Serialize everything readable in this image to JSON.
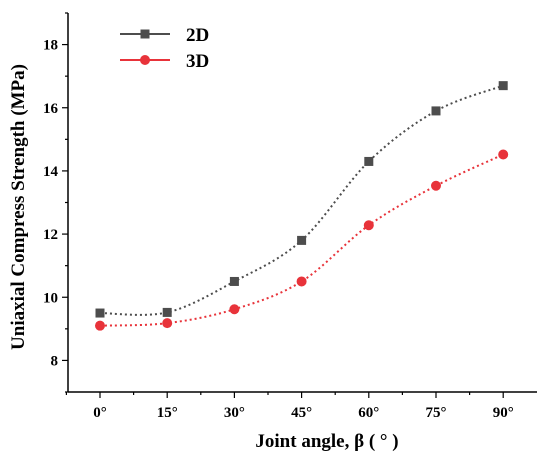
{
  "chart_data": {
    "type": "line",
    "x": [
      "0°",
      "15°",
      "30°",
      "45°",
      "60°",
      "75°",
      "90°"
    ],
    "series": [
      {
        "name": "2D",
        "values": [
          9.5,
          9.52,
          10.5,
          11.8,
          14.3,
          15.9,
          16.7
        ],
        "color": "#4d4d4d",
        "marker": "square"
      },
      {
        "name": "3D",
        "values": [
          9.1,
          9.18,
          9.62,
          10.5,
          12.28,
          13.53,
          14.52
        ],
        "color": "#e8333a",
        "marker": "circle"
      }
    ],
    "xlabel": "Joint angle, β ( ° )",
    "ylabel": "Uniaxial Compress Strength (MPa)",
    "ylim": [
      7,
      19
    ],
    "yticks": [
      "8",
      "10",
      "12",
      "14",
      "16",
      "18"
    ],
    "legend_position": "top-left",
    "grid": false,
    "line_style": "dotted"
  }
}
